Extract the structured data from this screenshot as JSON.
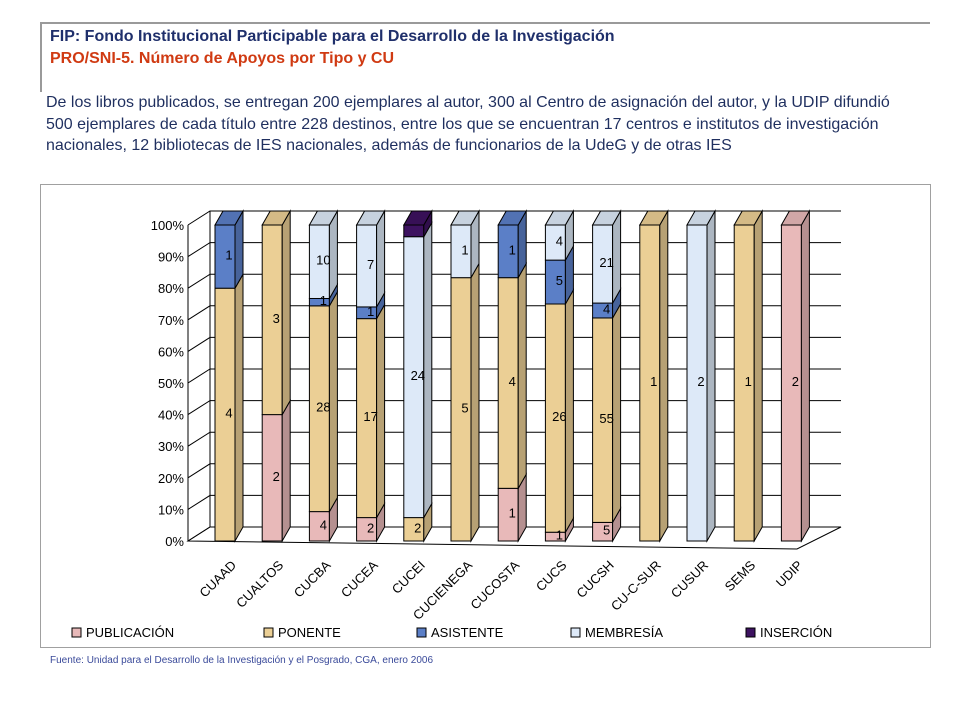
{
  "header": {
    "title": "FIP: Fondo Institucional Participable para el Desarrollo de la Investigación",
    "subtitle": "PRO/SNI-5. Número de Apoyos por Tipo y CU"
  },
  "description": "De los libros publicados, se entregan 200 ejemplares al autor, 300 al Centro de asignación del autor, y la UDIP difundió 500 ejemplares de cada título entre  228 destinos, entre los que se encuentran 17 centros e institutos de investigación nacionales, 12 bibliotecas de IES nacionales, además de funcionarios de la UdeG y de otras IES",
  "source": "Fuente: Unidad para el Desarrollo de la Investigación y el Posgrado, CGA, enero 2006",
  "colors": {
    "PUBLICACIÓN": "#e8b9b9",
    "PONENTE": "#ebcf95",
    "ASISTENTE": "#5b7fc7",
    "MEMBRESÍA": "#dde9f8",
    "INSERCIÓN": "#3d1260"
  },
  "chart_data": {
    "type": "bar",
    "stacked": "percent",
    "categories": [
      "CUAAD",
      "CUALTOS",
      "CUCBA",
      "CUCEA",
      "CUCEI",
      "CUCIENEGA",
      "CUCOSTA",
      "CUCS",
      "CUCSH",
      "CU-C-SUR",
      "CUSUR",
      "SEMS",
      "UDIP"
    ],
    "series": [
      {
        "name": "PUBLICACIÓN",
        "values": [
          0,
          2,
          4,
          2,
          0,
          0,
          1,
          1,
          5,
          0,
          0,
          0,
          2
        ]
      },
      {
        "name": "PONENTE",
        "values": [
          4,
          3,
          28,
          17,
          2,
          5,
          4,
          26,
          55,
          1,
          0,
          1,
          0
        ]
      },
      {
        "name": "ASISTENTE",
        "values": [
          1,
          0,
          1,
          1,
          0,
          0,
          1,
          5,
          4,
          0,
          0,
          0,
          0
        ]
      },
      {
        "name": "MEMBRESÍA",
        "values": [
          0,
          0,
          10,
          7,
          24,
          1,
          0,
          4,
          21,
          0,
          2,
          0,
          0
        ]
      },
      {
        "name": "INSERCIÓN",
        "values": [
          0,
          0,
          0,
          0,
          1,
          0,
          0,
          0,
          0,
          0,
          0,
          0,
          0
        ]
      }
    ],
    "data_labels": [
      {
        "category": "CUAAD",
        "series": "PONENTE",
        "text": "4"
      },
      {
        "category": "CUAAD",
        "series": "ASISTENTE",
        "text": "1"
      },
      {
        "category": "CUALTOS",
        "series": "PUBLICACIÓN",
        "text": "2"
      },
      {
        "category": "CUALTOS",
        "series": "PONENTE",
        "text": "3"
      },
      {
        "category": "CUCBA",
        "series": "PUBLICACIÓN",
        "text": "4"
      },
      {
        "category": "CUCBA",
        "series": "PONENTE",
        "text": "28"
      },
      {
        "category": "CUCBA",
        "series": "ASISTENTE",
        "text": "1"
      },
      {
        "category": "CUCBA",
        "series": "MEMBRESÍA",
        "text": "10"
      },
      {
        "category": "CUCEA",
        "series": "PUBLICACIÓN",
        "text": "2"
      },
      {
        "category": "CUCEA",
        "series": "PONENTE",
        "text": "17"
      },
      {
        "category": "CUCEA",
        "series": "ASISTENTE",
        "text": "1"
      },
      {
        "category": "CUCEA",
        "series": "MEMBRESÍA",
        "text": "7"
      },
      {
        "category": "CUCEI",
        "series": "PONENTE",
        "text": "2"
      },
      {
        "category": "CUCEI",
        "series": "MEMBRESÍA",
        "text": "24"
      },
      {
        "category": "CUCIENEGA",
        "series": "PONENTE",
        "text": "5"
      },
      {
        "category": "CUCIENEGA",
        "series": "MEMBRESÍA",
        "text": "1"
      },
      {
        "category": "CUCOSTA",
        "series": "PUBLICACIÓN",
        "text": "1"
      },
      {
        "category": "CUCOSTA",
        "series": "PONENTE",
        "text": "4"
      },
      {
        "category": "CUCOSTA",
        "series": "ASISTENTE",
        "text": "1"
      },
      {
        "category": "CUCS",
        "series": "PUBLICACIÓN",
        "text": "1"
      },
      {
        "category": "CUCS",
        "series": "PONENTE",
        "text": "26"
      },
      {
        "category": "CUCS",
        "series": "ASISTENTE",
        "text": "5"
      },
      {
        "category": "CUCS",
        "series": "MEMBRESÍA",
        "text": "4"
      },
      {
        "category": "CUCSH",
        "series": "PUBLICACIÓN",
        "text": "5"
      },
      {
        "category": "CUCSH",
        "series": "PONENTE",
        "text": "55"
      },
      {
        "category": "CUCSH",
        "series": "ASISTENTE",
        "text": "4"
      },
      {
        "category": "CUCSH",
        "series": "MEMBRESÍA",
        "text": "21"
      },
      {
        "category": "CU-C-SUR",
        "series": "PONENTE",
        "text": "1"
      },
      {
        "category": "CUSUR",
        "series": "MEMBRESÍA",
        "text": "2"
      },
      {
        "category": "SEMS",
        "series": "PONENTE",
        "text": "1"
      },
      {
        "category": "UDIP",
        "series": "PUBLICACIÓN",
        "text": "2"
      }
    ],
    "yticks": [
      "0%",
      "10%",
      "20%",
      "30%",
      "40%",
      "50%",
      "60%",
      "70%",
      "80%",
      "90%",
      "100%"
    ],
    "ylim": [
      0,
      100
    ],
    "grid": true,
    "legend": "bottom"
  }
}
